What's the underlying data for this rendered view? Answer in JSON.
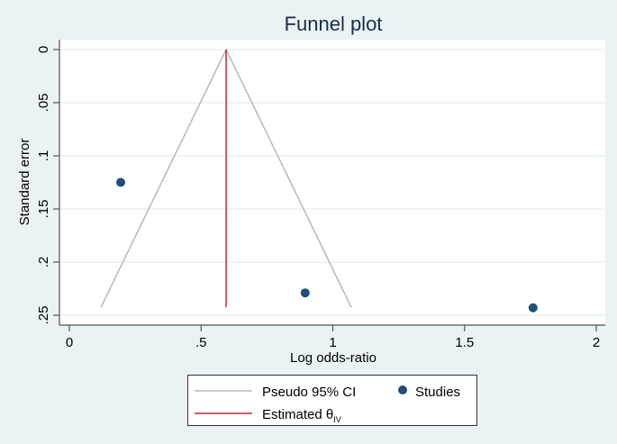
{
  "chart_data": {
    "type": "scatter",
    "title": "Funnel plot",
    "xlabel": "Log odds-ratio",
    "ylabel": "Standard error",
    "xlim": [
      0,
      2
    ],
    "ylim": [
      0.25,
      0
    ],
    "y_inverted": true,
    "x_ticks": [
      0,
      0.5,
      1,
      1.5,
      2
    ],
    "x_tick_labels": [
      "0",
      ".5",
      "1",
      "1.5",
      "2"
    ],
    "y_ticks": [
      0,
      0.05,
      0.1,
      0.15,
      0.2,
      0.25
    ],
    "y_tick_labels": [
      "0",
      ".05",
      ".1",
      ".15",
      ".2",
      ".25"
    ],
    "grid": "horizontal",
    "series": [
      {
        "name": "Studies",
        "type": "scatter",
        "color": "#1f4e79",
        "points": [
          {
            "x": 0.195,
            "y": 0.125
          },
          {
            "x": 0.895,
            "y": 0.229
          },
          {
            "x": 1.76,
            "y": 0.243
          }
        ]
      },
      {
        "name": "Pseudo 95% CI",
        "type": "line",
        "color": "#b8b8b8",
        "points": [
          {
            "x": 0.12,
            "y": 0.2425
          },
          {
            "x": 0.595,
            "y": 0
          },
          {
            "x": 1.07,
            "y": 0.2425
          }
        ]
      },
      {
        "name": "Estimated θIV",
        "type": "line",
        "color": "#c0283c",
        "points": [
          {
            "x": 0.595,
            "y": 0
          },
          {
            "x": 0.595,
            "y": 0.2425
          }
        ]
      }
    ],
    "legend": {
      "position": "bottom",
      "entries": [
        {
          "label": "Pseudo 95% CI",
          "symbol": "line",
          "color": "#b8b8b8"
        },
        {
          "label": "Studies",
          "symbol": "dot",
          "color": "#1f4e79"
        },
        {
          "label": "Estimated θ",
          "subscript": "IV",
          "symbol": "line",
          "color": "#c0283c"
        }
      ]
    }
  },
  "colors": {
    "background": "#eaf2f3",
    "plot_background": "#ffffff",
    "gridline": "#eaf2f3",
    "title": "#1a2b4c"
  }
}
